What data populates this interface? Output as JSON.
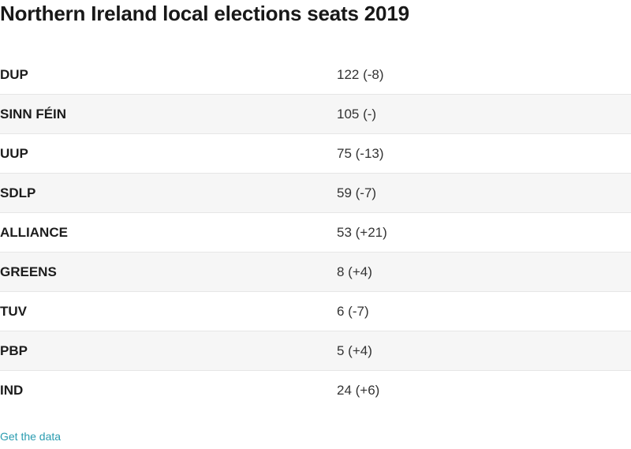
{
  "chart_data": {
    "type": "table",
    "title": "Northern Ireland local elections seats 2019",
    "columns": [
      "",
      ""
    ],
    "rows": [
      {
        "party": "DUP",
        "seats": "122 (-8)"
      },
      {
        "party": "SINN FÉIN",
        "seats": "105 (-)"
      },
      {
        "party": "UUP",
        "seats": "75 (-13)"
      },
      {
        "party": "SDLP",
        "seats": "59 (-7)"
      },
      {
        "party": "ALLIANCE",
        "seats": "53 (+21)"
      },
      {
        "party": "GREENS",
        "seats": "8 (+4)"
      },
      {
        "party": "TUV",
        "seats": "6 (-7)"
      },
      {
        "party": "PBP",
        "seats": "5 (+4)"
      },
      {
        "party": "IND",
        "seats": "24 (+6)"
      }
    ]
  },
  "footer": {
    "link_label": "Get the data",
    "link_color": "#2a9cb0"
  }
}
